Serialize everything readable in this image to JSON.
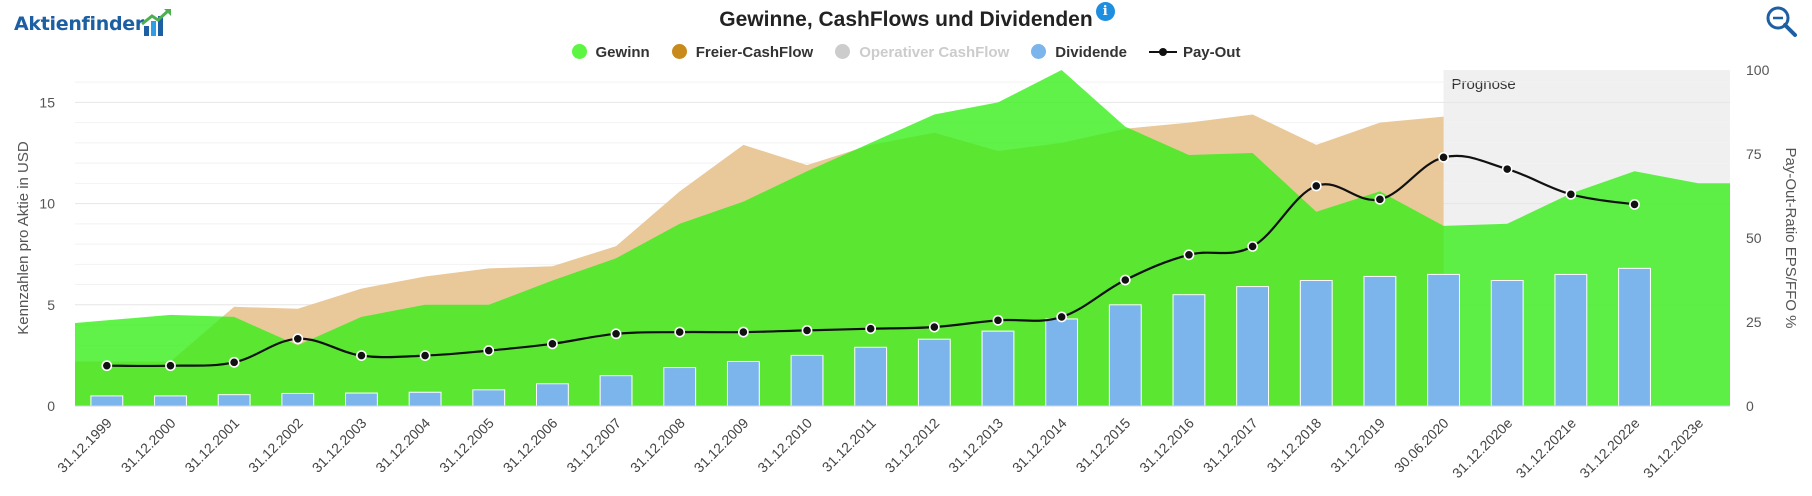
{
  "brand": {
    "name": "Aktienfinder"
  },
  "title": "Gewinne, CashFlows und Dividenden",
  "icons": {
    "info": "info-icon",
    "zoom": "zoom-in-icon",
    "logo_chart": "bar-chart-arrow-icon"
  },
  "legend": [
    {
      "name": "Gewinn",
      "color": "#5cf542",
      "visible": true
    },
    {
      "name": "Freier-CashFlow",
      "color": "#c98a1c",
      "visible": true
    },
    {
      "name": "Operativer CashFlow",
      "color": "#cccccc",
      "visible": false
    },
    {
      "name": "Dividende",
      "color": "#7cb5ec",
      "visible": true
    },
    {
      "name": "Pay-Out",
      "color": "#111111",
      "visible": true
    }
  ],
  "chart_data": {
    "type": "area",
    "categories": [
      "31.12.1999",
      "31.12.2000",
      "31.12.2001",
      "31.12.2002",
      "31.12.2003",
      "31.12.2004",
      "31.12.2005",
      "31.12.2006",
      "31.12.2007",
      "31.12.2008",
      "31.12.2009",
      "31.12.2010",
      "31.12.2011",
      "31.12.2012",
      "31.12.2013",
      "31.12.2014",
      "31.12.2015",
      "31.12.2016",
      "31.12.2017",
      "31.12.2018",
      "31.12.2019",
      "30.06.2020",
      "31.12.2020e",
      "31.12.2021e",
      "31.12.2022e",
      "31.12.2023e"
    ],
    "series": [
      {
        "name": "Gewinn",
        "type": "area",
        "axis": "left",
        "color": "#5cf542",
        "values": [
          4.1,
          4.5,
          4.4,
          3.0,
          4.4,
          5.0,
          5.0,
          6.2,
          7.3,
          9.0,
          10.1,
          11.6,
          13.0,
          14.4,
          15.0,
          16.6,
          13.8,
          12.4,
          12.5,
          9.6,
          10.6,
          8.9,
          9.0,
          10.5,
          11.6,
          11.0
        ]
      },
      {
        "name": "Freier-CashFlow",
        "type": "area",
        "axis": "left",
        "color": "#c98a1c",
        "values": [
          2.2,
          2.2,
          4.9,
          4.8,
          5.8,
          6.4,
          6.8,
          6.9,
          7.9,
          10.6,
          12.9,
          11.9,
          12.9,
          13.5,
          12.6,
          13.0,
          13.7,
          14.0,
          14.4,
          12.9,
          14.0,
          14.3,
          null,
          null,
          null,
          null
        ]
      },
      {
        "name": "Dividende",
        "type": "bar",
        "axis": "left",
        "color": "#7cb5ec",
        "values": [
          0.5,
          0.5,
          0.56,
          0.62,
          0.64,
          0.68,
          0.8,
          1.1,
          1.5,
          1.9,
          2.2,
          2.5,
          2.9,
          3.3,
          3.7,
          4.3,
          5.0,
          5.5,
          5.9,
          6.2,
          6.4,
          6.5,
          6.2,
          6.5,
          6.8,
          null
        ]
      },
      {
        "name": "Pay-Out",
        "type": "line",
        "axis": "right",
        "color": "#111111",
        "values": [
          12,
          12,
          13,
          20,
          15,
          15,
          16.5,
          18.5,
          21.5,
          22,
          22,
          22.5,
          23,
          23.5,
          25.5,
          26.5,
          37.5,
          45,
          47.5,
          65.5,
          61.5,
          74,
          70.5,
          63,
          60,
          null
        ]
      }
    ],
    "forecast_label": "Prognose",
    "forecast_from": "30.06.2020",
    "ylabel": "Kennzahlen pro Aktie in USD",
    "y2label": "Pay-Out-Ratio EPS/FFO %",
    "ylim": [
      0,
      16.6
    ],
    "y2lim": [
      0,
      100
    ],
    "yticks": [
      0,
      5,
      10,
      15
    ],
    "y2ticks": [
      0,
      25,
      50,
      75,
      100
    ],
    "grid": true,
    "legend_position": "top-center"
  }
}
